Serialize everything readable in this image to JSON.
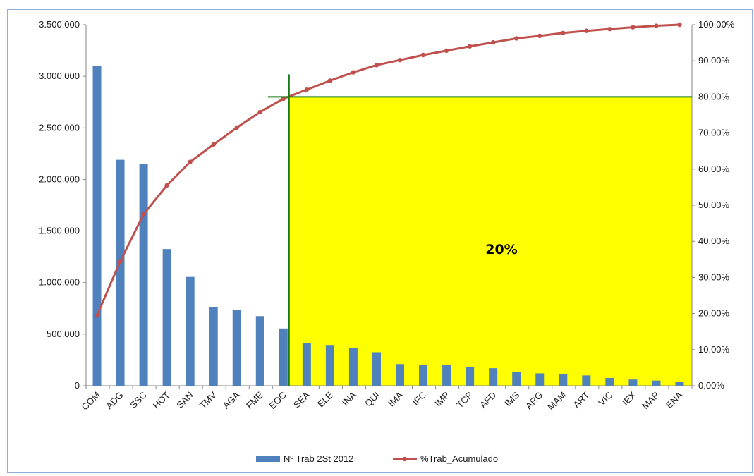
{
  "chart_data": {
    "type": "bar",
    "categories": [
      "COM",
      "ADG",
      "SSC",
      "HOT",
      "SAN",
      "TMV",
      "AGA",
      "FME",
      "EOC",
      "SEA",
      "ELE",
      "INA",
      "QUI",
      "IMA",
      "IFC",
      "IMP",
      "TCP",
      "AFD",
      "IMS",
      "ARG",
      "MAM",
      "ART",
      "VIC",
      "IEX",
      "MAP",
      "ENA"
    ],
    "series": [
      {
        "name": "Nº Trab 2St 2012",
        "type": "bar",
        "axis": "left",
        "color": "#4f81bd",
        "values": [
          3100000,
          2190000,
          2150000,
          1325000,
          1055000,
          760000,
          735000,
          675000,
          555000,
          415000,
          395000,
          365000,
          325000,
          210000,
          200000,
          200000,
          180000,
          170000,
          130000,
          120000,
          110000,
          100000,
          75000,
          60000,
          50000,
          40000
        ]
      },
      {
        "name": "%Trab_Acumulado",
        "type": "line",
        "axis": "right",
        "color": "#c0504d",
        "values": [
          19.5,
          34.5,
          47.5,
          55.5,
          62.0,
          66.8,
          71.5,
          75.8,
          79.5,
          82.0,
          84.5,
          86.8,
          88.8,
          90.2,
          91.6,
          92.8,
          94.0,
          95.1,
          96.2,
          96.9,
          97.7,
          98.3,
          98.8,
          99.3,
          99.7,
          100.0
        ]
      }
    ],
    "ylim": [
      0,
      3500000
    ],
    "yticks": [
      "0",
      "500.000",
      "1.000.000",
      "1.500.000",
      "2.000.000",
      "2.500.000",
      "3.000.000",
      "3.500.000"
    ],
    "y2lim": [
      0,
      100
    ],
    "y2ticks": [
      "0,00%",
      "10,00%",
      "20,00%",
      "30,00%",
      "40,00%",
      "50,00%",
      "60,00%",
      "70,00%",
      "80,00%",
      "90,00%",
      "100,00%"
    ],
    "title": "",
    "xlabel": "",
    "ylabel": "",
    "legend_position": "bottom",
    "grid": false,
    "annotation": {
      "text": "20%",
      "highlight_color": "#ffff00",
      "threshold_line_color": "#1a7a1a",
      "threshold_percent": 80,
      "from_category": "EOC"
    }
  }
}
